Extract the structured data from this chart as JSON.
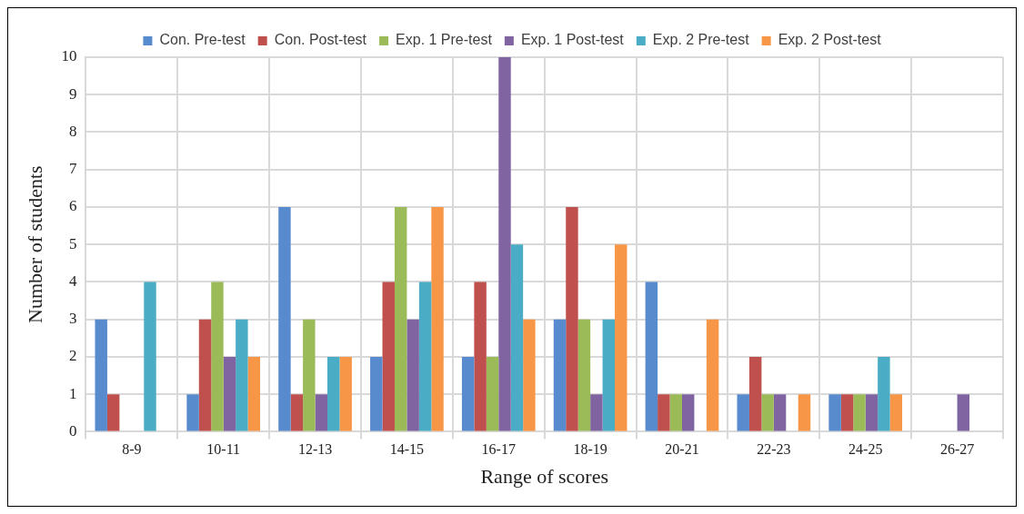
{
  "chart_data": {
    "type": "bar",
    "xlabel": "Range of scores",
    "ylabel": "Number of students",
    "categories": [
      "8-9",
      "10-11",
      "12-13",
      "14-15",
      "16-17",
      "18-19",
      "20-21",
      "22-23",
      "24-25",
      "26-27"
    ],
    "series": [
      {
        "name": "Con. Pre-test",
        "color": "#588ace",
        "values": [
          3,
          1,
          6,
          2,
          2,
          3,
          4,
          1,
          1,
          0
        ]
      },
      {
        "name": "Con. Post-test",
        "color": "#c0504d",
        "values": [
          1,
          3,
          1,
          4,
          4,
          6,
          1,
          2,
          1,
          0
        ]
      },
      {
        "name": "Exp. 1 Pre-test",
        "color": "#9bbb59",
        "values": [
          0,
          4,
          3,
          6,
          2,
          3,
          1,
          1,
          1,
          0
        ]
      },
      {
        "name": "Exp. 1 Post-test",
        "color": "#8064a2",
        "values": [
          0,
          2,
          1,
          3,
          10,
          1,
          1,
          1,
          1,
          1
        ]
      },
      {
        "name": "Exp. 2 Pre-test",
        "color": "#4bacc6",
        "values": [
          4,
          3,
          2,
          4,
          5,
          3,
          0,
          0,
          2,
          0
        ]
      },
      {
        "name": "Exp. 2 Post-test",
        "color": "#f79646",
        "values": [
          0,
          2,
          2,
          6,
          3,
          5,
          3,
          1,
          1,
          0
        ]
      }
    ],
    "ylim": [
      0,
      10
    ],
    "yticks": [
      0,
      1,
      2,
      3,
      4,
      5,
      6,
      7,
      8,
      9,
      10
    ],
    "grid": true,
    "legend": "top"
  }
}
